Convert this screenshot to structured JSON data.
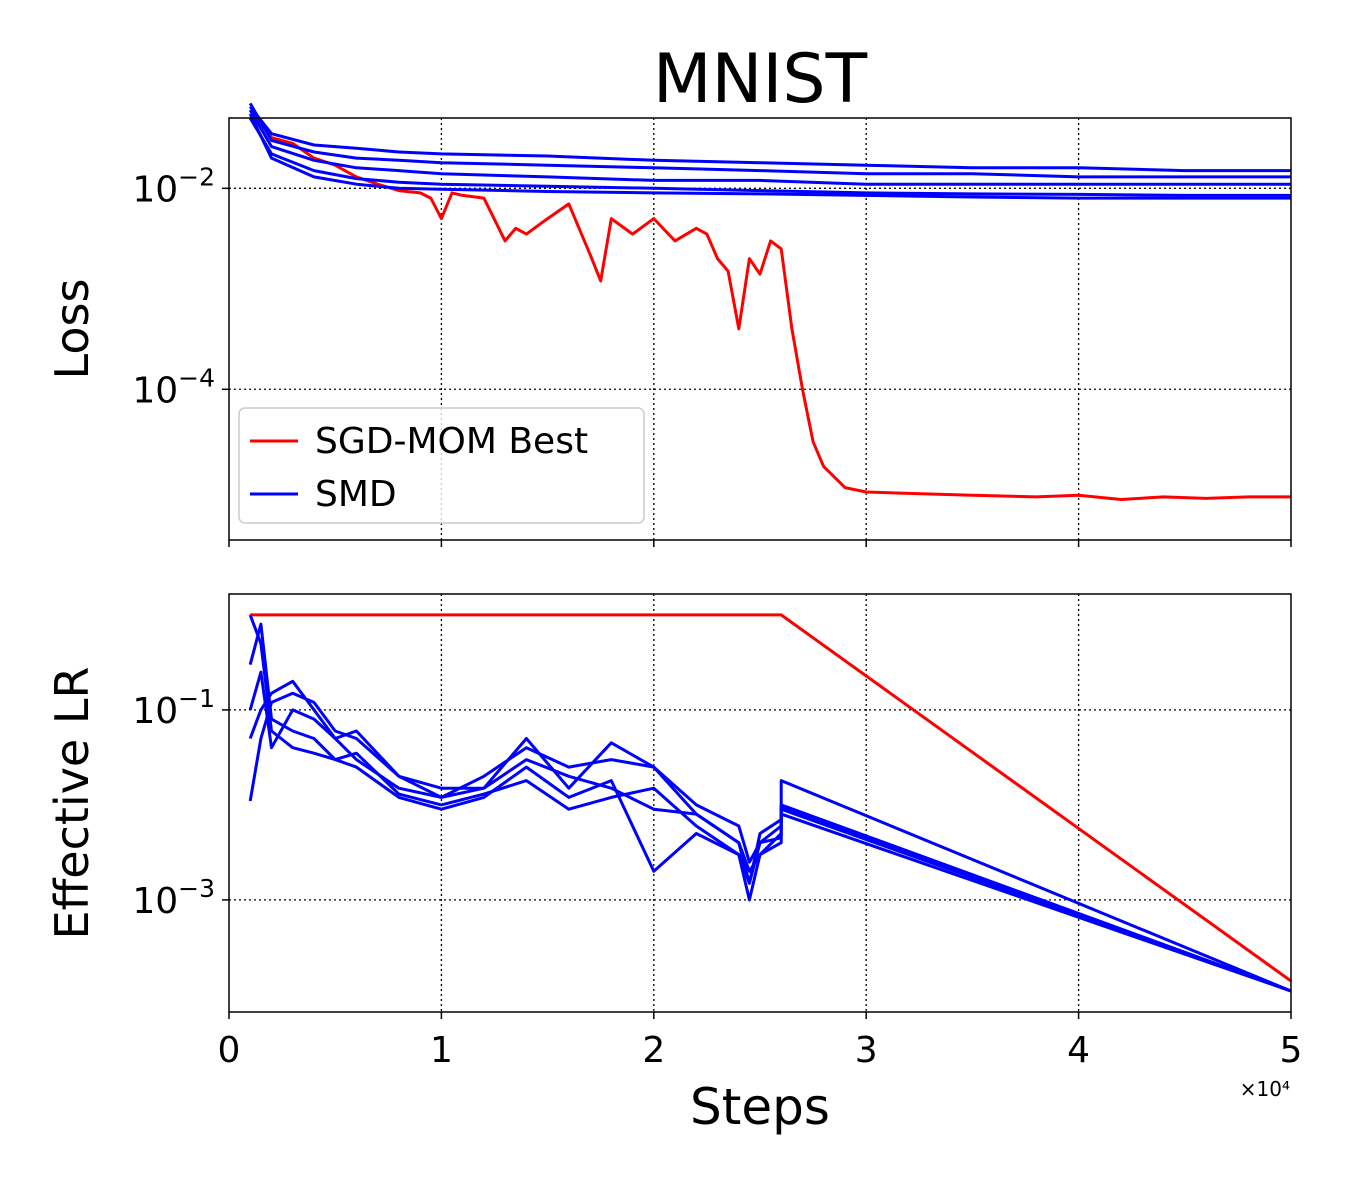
{
  "figure": {
    "title": "MNIST",
    "xlabel": "Steps",
    "x_multiplier": "×10⁴",
    "colors": {
      "sgd": "#ff0000",
      "smd": "#0000ff",
      "grid": "#000000",
      "axes": "#000000"
    }
  },
  "chart_data": [
    {
      "type": "line",
      "ylabel": "Loss",
      "yscale": "log",
      "xlim": [
        0,
        50000
      ],
      "ylim_log10": [
        -5.5,
        -1.3
      ],
      "xticks": [
        0,
        10000,
        20000,
        30000,
        40000,
        50000
      ],
      "yticks": [
        0.01,
        0.0001
      ],
      "ytick_labels": [
        {
          "base": "10",
          "exp": "−2"
        },
        {
          "base": "10",
          "exp": "−4"
        }
      ],
      "grid": true,
      "legend": {
        "placement": "lower-left",
        "entries": [
          "SGD-MOM Best",
          "SMD"
        ]
      },
      "series": [
        {
          "name": "SGD-MOM Best",
          "color": "#ff0000",
          "x": [
            1000,
            2000,
            3000,
            4000,
            5000,
            6000,
            7000,
            8000,
            9000,
            9500,
            10000,
            10500,
            11000,
            12000,
            13000,
            13500,
            14000,
            15000,
            16000,
            17000,
            17500,
            18000,
            19000,
            20000,
            21000,
            22000,
            22500,
            23000,
            23500,
            24000,
            24500,
            25000,
            25500,
            26000,
            26500,
            27000,
            27500,
            28000,
            29000,
            30000,
            32000,
            35000,
            38000,
            40000,
            42000,
            44000,
            46000,
            48000,
            50000
          ],
          "y": [
            0.06,
            0.032,
            0.028,
            0.02,
            0.017,
            0.013,
            0.011,
            0.0095,
            0.009,
            0.008,
            0.005,
            0.009,
            0.0085,
            0.008,
            0.003,
            0.004,
            0.0035,
            0.005,
            0.007,
            0.0022,
            0.0012,
            0.005,
            0.0035,
            0.005,
            0.003,
            0.004,
            0.0035,
            0.002,
            0.0015,
            0.0004,
            0.002,
            0.0014,
            0.003,
            0.0025,
            0.0004,
            0.0001,
            3e-05,
            1.7e-05,
            1.05e-05,
            9.5e-06,
            9.2e-06,
            8.8e-06,
            8.5e-06,
            8.8e-06,
            8e-06,
            8.5e-06,
            8.2e-06,
            8.5e-06,
            8.5e-06
          ]
        },
        {
          "name": "SMD",
          "color": "#0000ff",
          "x": [
            1000,
            2000,
            4000,
            6000,
            8000,
            10000,
            15000,
            20000,
            25000,
            30000,
            35000,
            40000,
            45000,
            50000
          ],
          "y": [
            0.065,
            0.035,
            0.027,
            0.025,
            0.023,
            0.022,
            0.021,
            0.019,
            0.018,
            0.017,
            0.016,
            0.016,
            0.015,
            0.015
          ]
        },
        {
          "name": "",
          "color": "#0000ff",
          "x": [
            1000,
            2000,
            4000,
            6000,
            8000,
            10000,
            15000,
            20000,
            25000,
            30000,
            35000,
            40000,
            45000,
            50000
          ],
          "y": [
            0.07,
            0.03,
            0.023,
            0.02,
            0.019,
            0.018,
            0.017,
            0.016,
            0.015,
            0.014,
            0.014,
            0.013,
            0.013,
            0.013
          ]
        },
        {
          "name": "",
          "color": "#0000ff",
          "x": [
            1000,
            2000,
            4000,
            6000,
            8000,
            10000,
            15000,
            20000,
            25000,
            30000,
            35000,
            40000,
            45000,
            50000
          ],
          "y": [
            0.06,
            0.026,
            0.019,
            0.016,
            0.015,
            0.014,
            0.013,
            0.012,
            0.012,
            0.011,
            0.011,
            0.011,
            0.011,
            0.011
          ]
        },
        {
          "name": "",
          "color": "#0000ff",
          "x": [
            1000,
            2000,
            4000,
            6000,
            8000,
            10000,
            15000,
            20000,
            25000,
            30000,
            35000,
            40000,
            45000,
            50000
          ],
          "y": [
            0.05,
            0.022,
            0.015,
            0.0125,
            0.0115,
            0.011,
            0.0105,
            0.01,
            0.0095,
            0.009,
            0.0088,
            0.0087,
            0.0085,
            0.0085
          ]
        },
        {
          "name": "",
          "color": "#0000ff",
          "x": [
            1000,
            2000,
            4000,
            6000,
            8000,
            10000,
            15000,
            20000,
            25000,
            30000,
            35000,
            40000,
            45000,
            50000
          ],
          "y": [
            0.055,
            0.02,
            0.013,
            0.011,
            0.01,
            0.0098,
            0.0093,
            0.009,
            0.0088,
            0.0085,
            0.0082,
            0.008,
            0.008,
            0.008
          ]
        }
      ]
    },
    {
      "type": "line",
      "ylabel": "Effective LR",
      "yscale": "log",
      "xlim": [
        0,
        50000
      ],
      "ylim_log10": [
        -4.18,
        0.22
      ],
      "xticks": [
        0,
        10000,
        20000,
        30000,
        40000,
        50000
      ],
      "xtick_labels": [
        "0",
        "1",
        "2",
        "3",
        "4",
        "5"
      ],
      "yticks": [
        0.1,
        0.001
      ],
      "ytick_labels": [
        {
          "base": "10",
          "exp": "−1"
        },
        {
          "base": "10",
          "exp": "−3"
        }
      ],
      "grid": true,
      "series": [
        {
          "name": "",
          "color": "#ff0000",
          "x": [
            1000,
            26000,
            50000
          ],
          "y": [
            1.0,
            1.0,
            0.00014
          ]
        },
        {
          "name": "",
          "color": "#0000ff",
          "x": [
            1000,
            1500,
            2000,
            3000,
            4000,
            5000,
            6000,
            8000,
            10000,
            12000,
            14000,
            16000,
            18000,
            20000,
            22000,
            24000,
            24500,
            25000,
            26000,
            26000,
            50000
          ],
          "y": [
            0.011,
            0.05,
            0.12,
            0.15,
            0.12,
            0.06,
            0.05,
            0.02,
            0.012,
            0.015,
            0.03,
            0.02,
            0.015,
            0.009,
            0.008,
            0.004,
            0.0015,
            0.005,
            0.007,
            0.018,
            0.00011
          ]
        },
        {
          "name": "",
          "color": "#0000ff",
          "x": [
            1000,
            1500,
            2000,
            3000,
            4000,
            5000,
            6000,
            8000,
            10000,
            12000,
            14000,
            16000,
            18000,
            20000,
            22000,
            24000,
            24500,
            25000,
            26000,
            26000,
            50000
          ],
          "y": [
            0.05,
            0.1,
            0.15,
            0.2,
            0.1,
            0.05,
            0.03,
            0.015,
            0.012,
            0.02,
            0.04,
            0.025,
            0.03,
            0.025,
            0.01,
            0.006,
            0.0025,
            0.004,
            0.006,
            0.01,
            0.00011
          ]
        },
        {
          "name": "",
          "color": "#0000ff",
          "x": [
            1000,
            1500,
            2000,
            3000,
            4000,
            5000,
            6000,
            8000,
            10000,
            12000,
            14000,
            16000,
            18000,
            20000,
            22000,
            24000,
            24500,
            25000,
            26000,
            26000,
            50000
          ],
          "y": [
            1.0,
            0.5,
            0.06,
            0.04,
            0.035,
            0.03,
            0.025,
            0.012,
            0.009,
            0.012,
            0.025,
            0.012,
            0.018,
            0.002,
            0.005,
            0.003,
            0.001,
            0.003,
            0.004,
            0.008,
            0.00011
          ]
        },
        {
          "name": "",
          "color": "#0000ff",
          "x": [
            1000,
            1500,
            2000,
            3000,
            4000,
            5000,
            6000,
            8000,
            10000,
            12000,
            14000,
            16000,
            18000,
            20000,
            22000,
            24000,
            24500,
            25000,
            26000,
            26000,
            50000
          ],
          "y": [
            0.1,
            0.25,
            0.04,
            0.1,
            0.08,
            0.05,
            0.06,
            0.02,
            0.015,
            0.015,
            0.05,
            0.015,
            0.045,
            0.025,
            0.008,
            0.004,
            0.002,
            0.003,
            0.005,
            0.009,
            0.00011
          ]
        },
        {
          "name": "",
          "color": "#0000ff",
          "x": [
            1000,
            1500,
            2000,
            3000,
            4000,
            5000,
            6000,
            8000,
            10000,
            12000,
            14000,
            16000,
            18000,
            20000,
            22000,
            24000,
            24500,
            25000,
            26000,
            26000,
            50000
          ],
          "y": [
            0.3,
            0.8,
            0.08,
            0.06,
            0.05,
            0.03,
            0.035,
            0.013,
            0.01,
            0.013,
            0.018,
            0.009,
            0.012,
            0.015,
            0.006,
            0.003,
            0.0015,
            0.004,
            0.0045,
            0.0095,
            0.00011
          ]
        }
      ]
    }
  ]
}
